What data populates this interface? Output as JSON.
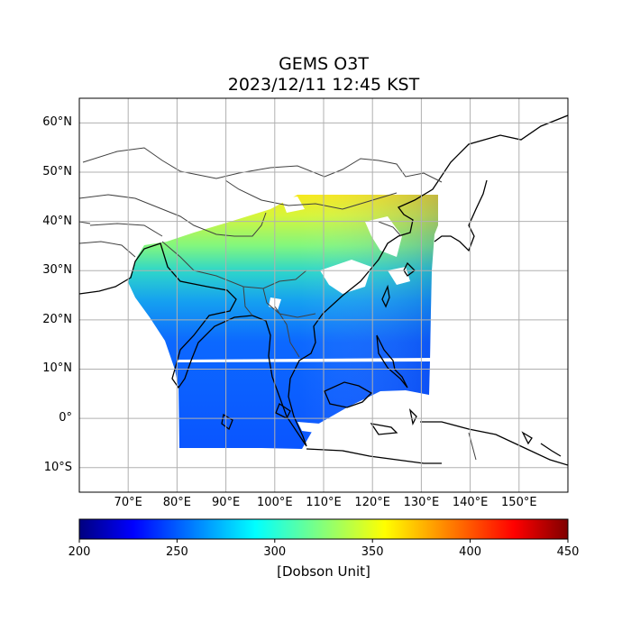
{
  "title": {
    "line1": "GEMS O3T",
    "line2": "2023/12/11 12:45 KST"
  },
  "map": {
    "lat_labels": [
      "60°N",
      "50°N",
      "40°N",
      "30°N",
      "20°N",
      "10°N",
      "0°",
      "10°S"
    ],
    "lat_values": [
      60,
      50,
      40,
      30,
      20,
      10,
      0,
      -10
    ],
    "lon_labels": [
      "70°E",
      "80°E",
      "90°E",
      "100°E",
      "110°E",
      "120°E",
      "130°E",
      "140°E",
      "150°E"
    ],
    "lon_values": [
      70,
      80,
      90,
      100,
      110,
      120,
      130,
      140,
      150
    ],
    "lon_range": [
      60,
      160
    ],
    "lat_range": [
      -15,
      65
    ],
    "grid": true
  },
  "colorbar": {
    "ticks": [
      "200",
      "250",
      "300",
      "350",
      "400",
      "450"
    ],
    "range": [
      200,
      450
    ],
    "label": "[Dobson Unit]",
    "colormap": "jet"
  }
}
